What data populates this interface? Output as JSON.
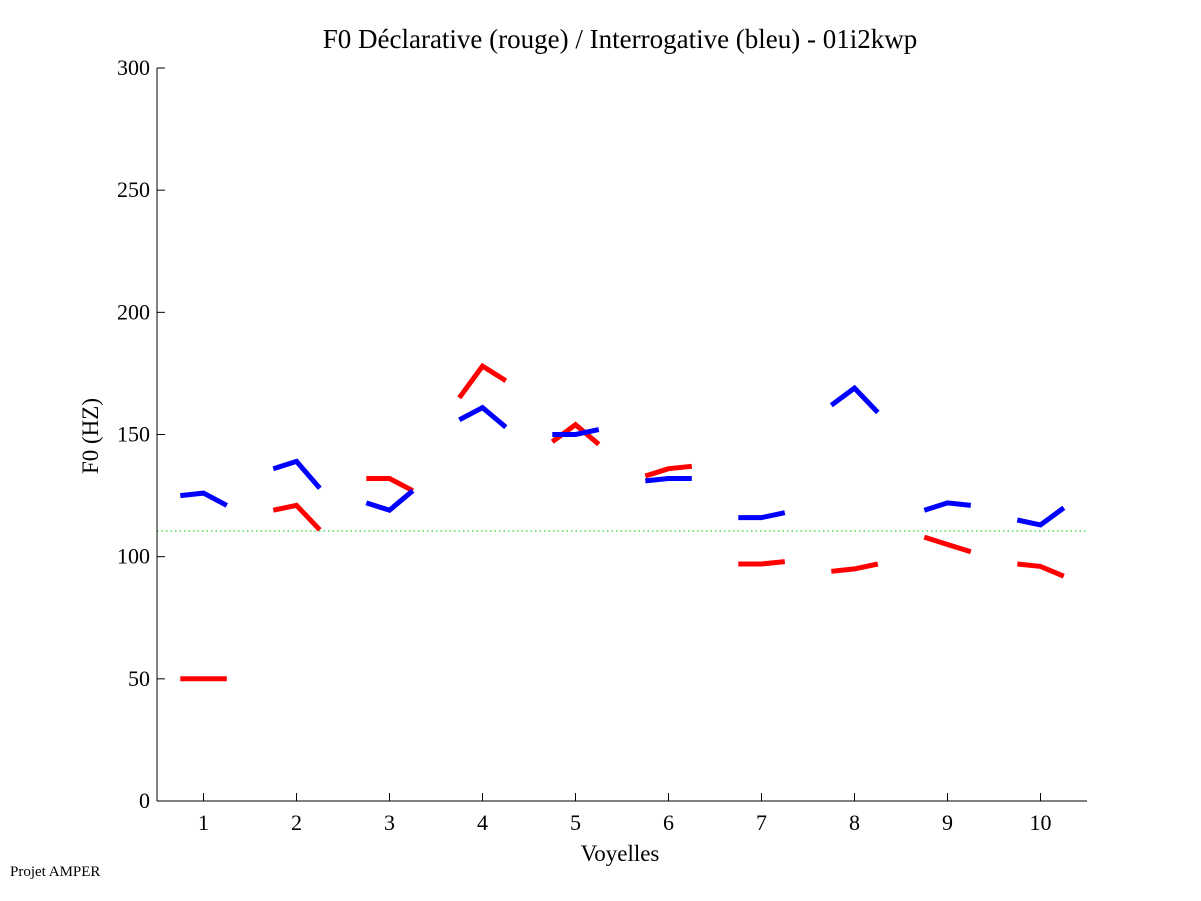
{
  "chart_data": {
    "type": "line",
    "title": "F0 Déclarative (rouge) / Interrogative (bleu) - 01i2kwp",
    "xlabel": "Voyelles",
    "ylabel": "F0 (HZ)",
    "xlim": [
      0.5,
      10.5
    ],
    "ylim": [
      0,
      300
    ],
    "yticks": [
      0,
      50,
      100,
      150,
      200,
      250,
      300
    ],
    "ytick_labels": [
      "0",
      "50",
      "100",
      "150",
      "200",
      "250",
      "300"
    ],
    "xticks": [
      1,
      2,
      3,
      4,
      5,
      6,
      7,
      8,
      9,
      10
    ],
    "xtick_labels": [
      "1",
      "2",
      "3",
      "4",
      "5",
      "6",
      "7",
      "8",
      "9",
      "10"
    ],
    "reference_line": {
      "y": 110.5,
      "color": "#00cc00",
      "style": "dotted"
    },
    "segment_offsets": [
      -0.25,
      0,
      0.25
    ],
    "series": [
      {
        "name": "Déclarative",
        "color": "#ff0000",
        "segments": [
          [
            50,
            50,
            50
          ],
          [
            119,
            121,
            111
          ],
          [
            132,
            132,
            127
          ],
          [
            165,
            178,
            172
          ],
          [
            147,
            154,
            146
          ],
          [
            133,
            136,
            137
          ],
          [
            97,
            97,
            98
          ],
          [
            94,
            95,
            97
          ],
          [
            108,
            105,
            102
          ],
          [
            97,
            96,
            92
          ]
        ]
      },
      {
        "name": "Interrogative",
        "color": "#0000ff",
        "segments": [
          [
            125,
            126,
            121
          ],
          [
            136,
            139,
            128
          ],
          [
            122,
            119,
            127
          ],
          [
            156,
            161,
            153
          ],
          [
            150,
            150,
            152
          ],
          [
            131,
            132,
            132
          ],
          [
            116,
            116,
            118
          ],
          [
            162,
            169,
            159
          ],
          [
            119,
            122,
            121
          ],
          [
            115,
            113,
            120
          ]
        ]
      }
    ]
  },
  "footer": {
    "text": "Projet AMPER"
  }
}
